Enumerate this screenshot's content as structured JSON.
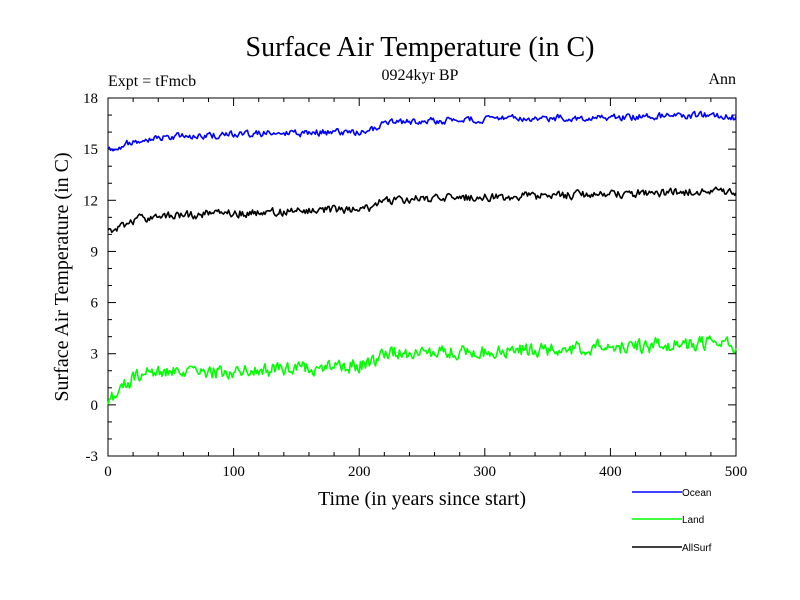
{
  "chart_data": {
    "type": "line",
    "title": "Surface Air Temperature (in C)",
    "subtitle": "0924kyr BP",
    "left_label": "Expt = tFmcb",
    "right_label": "Ann",
    "xlabel": "Time (in years since start)",
    "ylabel": "Surface Air Temperature (in C)",
    "xlim": [
      0,
      500
    ],
    "ylim": [
      -3,
      18
    ],
    "x_ticks": [
      0,
      100,
      200,
      300,
      400,
      500
    ],
    "y_ticks": [
      -3,
      0,
      3,
      6,
      9,
      12,
      15,
      18
    ],
    "grid": false,
    "legend_position": "bottom-right",
    "series": [
      {
        "name": "Ocean",
        "color": "#0000ff",
        "x": [
          0,
          10,
          20,
          30,
          40,
          60,
          80,
          100,
          120,
          140,
          160,
          180,
          200,
          210,
          220,
          240,
          260,
          280,
          300,
          320,
          340,
          360,
          380,
          400,
          420,
          440,
          460,
          470,
          480,
          490,
          500
        ],
        "y": [
          15.0,
          15.2,
          15.5,
          15.6,
          15.7,
          15.75,
          15.8,
          15.85,
          15.9,
          15.9,
          15.95,
          16.0,
          16.0,
          16.1,
          16.5,
          16.6,
          16.65,
          16.7,
          16.75,
          16.8,
          16.8,
          16.85,
          16.85,
          16.9,
          16.9,
          16.95,
          16.95,
          17.0,
          17.0,
          16.9,
          16.85
        ]
      },
      {
        "name": "Land",
        "color": "#00ff00",
        "x": [
          0,
          10,
          20,
          30,
          40,
          60,
          80,
          100,
          120,
          140,
          160,
          180,
          200,
          210,
          220,
          240,
          260,
          280,
          300,
          320,
          340,
          360,
          380,
          400,
          420,
          440,
          460,
          470,
          480,
          490,
          500
        ],
        "y": [
          0.3,
          1.0,
          1.5,
          1.8,
          1.9,
          1.8,
          1.9,
          2.0,
          2.05,
          2.1,
          2.2,
          2.3,
          2.3,
          2.5,
          3.0,
          3.1,
          3.0,
          3.1,
          3.1,
          3.2,
          3.2,
          3.3,
          3.3,
          3.4,
          3.4,
          3.5,
          3.6,
          3.6,
          3.6,
          3.5,
          3.5
        ]
      },
      {
        "name": "AllSurf",
        "color": "#000000",
        "x": [
          0,
          10,
          20,
          30,
          40,
          60,
          80,
          100,
          120,
          140,
          160,
          180,
          200,
          210,
          220,
          240,
          260,
          280,
          300,
          320,
          340,
          360,
          380,
          400,
          420,
          440,
          460,
          470,
          480,
          490,
          500
        ],
        "y": [
          10.1,
          10.4,
          10.8,
          11.0,
          11.1,
          11.15,
          11.2,
          11.25,
          11.3,
          11.35,
          11.4,
          11.45,
          11.5,
          11.6,
          12.0,
          12.05,
          12.1,
          12.15,
          12.2,
          12.2,
          12.25,
          12.3,
          12.3,
          12.35,
          12.4,
          12.45,
          12.5,
          12.55,
          12.5,
          12.45,
          12.4
        ]
      }
    ]
  }
}
